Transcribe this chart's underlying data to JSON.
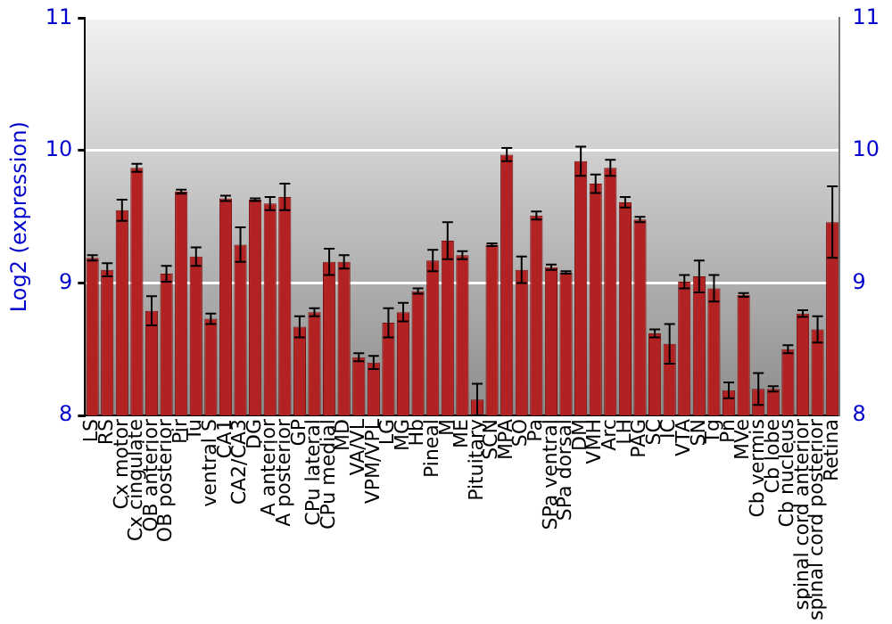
{
  "chart_data": {
    "type": "bar",
    "ylabel": "Log2 (expression)",
    "categories": [
      "LS",
      "RS",
      "Cx motor",
      "Cx cingulate",
      "OB anterior",
      "OB posterior",
      "Pir",
      "Tu",
      "ventral S",
      "CA1",
      "CA2/CA3",
      "DG",
      "A anterior",
      "A posterior",
      "GP",
      "CPu lateral",
      "CPu medial",
      "MD",
      "VA/VL",
      "VPM/VPL",
      "LG",
      "MG",
      "Hb",
      "Pineal",
      "M",
      "ME",
      "Pituitary",
      "SCN",
      "MPA",
      "SO",
      "Pa",
      "SPa ventral",
      "SPa dorsal",
      "DM",
      "VMH",
      "Arc",
      "LH",
      "PAG",
      "SC",
      "IC",
      "VTA",
      "SN",
      "Tg",
      "Pn",
      "MVe",
      "Cb vermis",
      "Cb lobe",
      "Cb nucleus",
      "spinal cord anterior",
      "spinal cord posterior",
      "Retina"
    ],
    "values": [
      9.19,
      9.1,
      9.55,
      9.87,
      8.79,
      9.07,
      9.69,
      9.2,
      8.73,
      9.64,
      9.29,
      9.63,
      9.6,
      9.65,
      8.67,
      8.78,
      9.16,
      9.16,
      8.44,
      8.4,
      8.7,
      8.78,
      8.94,
      9.17,
      9.32,
      9.21,
      8.12,
      9.29,
      9.97,
      9.1,
      9.51,
      9.12,
      9.08,
      9.92,
      9.75,
      9.87,
      9.61,
      9.48,
      8.62,
      8.54,
      9.01,
      9.05,
      8.96,
      8.19,
      8.91,
      8.2,
      8.2,
      8.5,
      8.77,
      8.65,
      9.46
    ],
    "errors": [
      0.02,
      0.05,
      0.08,
      0.03,
      0.11,
      0.06,
      0.015,
      0.07,
      0.04,
      0.02,
      0.13,
      0.01,
      0.05,
      0.1,
      0.08,
      0.03,
      0.1,
      0.05,
      0.03,
      0.05,
      0.11,
      0.07,
      0.02,
      0.08,
      0.14,
      0.03,
      0.12,
      0.01,
      0.05,
      0.1,
      0.03,
      0.02,
      0.01,
      0.11,
      0.07,
      0.06,
      0.04,
      0.02,
      0.03,
      0.15,
      0.05,
      0.12,
      0.1,
      0.06,
      0.015,
      0.12,
      0.02,
      0.03,
      0.025,
      0.1,
      0.27
    ],
    "color": "#b22222",
    "ylim": [
      8,
      11
    ],
    "yticks": [
      8,
      9,
      10,
      11
    ],
    "y2lim": [
      8,
      11
    ],
    "y2ticks": [
      8,
      9,
      10,
      11
    ],
    "grid": "y",
    "legend": false
  }
}
